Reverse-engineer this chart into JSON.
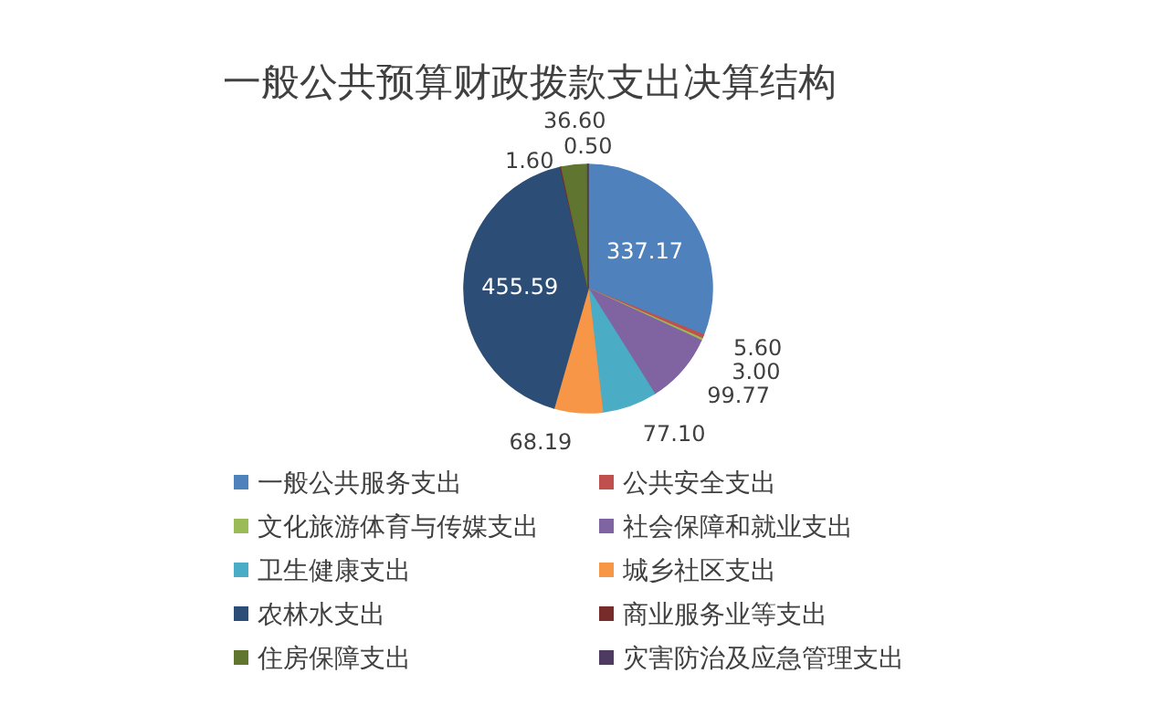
{
  "chart_data": {
    "type": "pie",
    "title": "一般公共预算财政拨款支出决算结构",
    "categories": [
      "一般公共服务支出",
      "公共安全支出",
      "文化旅游体育与传媒支出",
      "社会保障和就业支出",
      "卫生健康支出",
      "城乡社区支出",
      "农林水支出",
      "商业服务业等支出",
      "住房保障支出",
      "灾害防治及应急管理支出"
    ],
    "values": [
      337.17,
      5.6,
      3.0,
      99.77,
      77.1,
      68.19,
      455.59,
      1.6,
      36.6,
      0.5
    ],
    "value_labels": [
      "337.17",
      "5.60",
      "3.00",
      "99.77",
      "77.10",
      "68.19",
      "455.59",
      "1.60",
      "36.60",
      "0.50"
    ],
    "colors": [
      "#4f81bd",
      "#c0504d",
      "#9bbb59",
      "#8064a2",
      "#4bacc6",
      "#f79646",
      "#2c4d75",
      "#772c2a",
      "#5f7530",
      "#4d3b62"
    ],
    "legend": "bottom"
  }
}
